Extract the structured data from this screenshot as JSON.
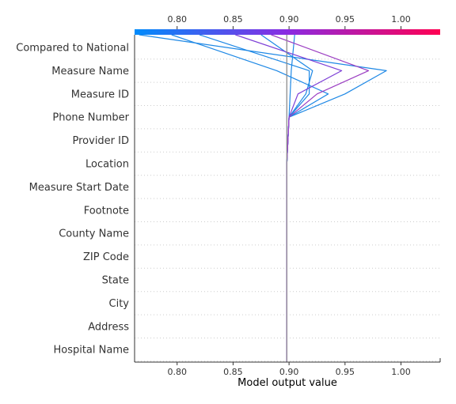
{
  "chart_data": {
    "type": "line",
    "title": "",
    "xlabel": "Model output value",
    "features": [
      "Compared to National",
      "Measure Name",
      "Measure ID",
      "Phone Number",
      "Provider ID",
      "Location",
      "Measure Start Date",
      "Footnote",
      "County Name",
      "ZIP Code",
      "State",
      "City",
      "Address",
      "Hospital Name"
    ],
    "xticks": [
      "0.80",
      "0.85",
      "0.90",
      "0.95",
      "1.00"
    ],
    "xtick_values": [
      0.8,
      0.85,
      0.9,
      0.95,
      1.0
    ],
    "xlim": [
      0.762,
      1.035
    ],
    "base_value": 0.898,
    "grid": "dotted horizontal",
    "colorbar": {
      "position": "top",
      "low_color": "#008bfb",
      "mid_color": "#8a2be2",
      "high_color": "#ff0052"
    },
    "series": [
      {
        "color": "#1e88e5",
        "values": [
          0.898,
          0.898,
          0.898,
          0.898,
          0.898,
          0.898,
          0.898,
          0.898,
          0.898,
          0.898,
          0.899,
          0.9,
          0.901,
          0.902,
          0.905
        ]
      },
      {
        "color": "#1e88e5",
        "values": [
          0.898,
          0.898,
          0.898,
          0.898,
          0.898,
          0.898,
          0.898,
          0.898,
          0.898,
          0.898,
          0.899,
          0.9,
          0.918,
          0.918,
          0.82
        ]
      },
      {
        "color": "#1e88e5",
        "values": [
          0.898,
          0.898,
          0.898,
          0.898,
          0.898,
          0.898,
          0.898,
          0.898,
          0.898,
          0.898,
          0.899,
          0.9,
          0.915,
          0.921,
          0.875
        ]
      },
      {
        "color": "#1e88e5",
        "values": [
          0.898,
          0.898,
          0.898,
          0.898,
          0.898,
          0.898,
          0.898,
          0.898,
          0.898,
          0.898,
          0.899,
          0.9,
          0.95,
          0.987,
          0.766
        ]
      },
      {
        "color": "#1e88e5",
        "values": [
          0.898,
          0.898,
          0.898,
          0.898,
          0.898,
          0.898,
          0.898,
          0.898,
          0.898,
          0.898,
          0.899,
          0.9,
          0.935,
          0.889,
          0.795
        ]
      },
      {
        "color": "#7d3fd6",
        "values": [
          0.898,
          0.898,
          0.898,
          0.898,
          0.898,
          0.898,
          0.898,
          0.898,
          0.898,
          0.898,
          0.899,
          0.9,
          0.908,
          0.947,
          0.852
        ]
      },
      {
        "color": "#9b3ec2",
        "values": [
          0.898,
          0.898,
          0.898,
          0.898,
          0.898,
          0.898,
          0.898,
          0.898,
          0.898,
          0.898,
          0.899,
          0.9,
          0.925,
          0.971,
          0.884
        ]
      },
      {
        "color": "#8f8f8f",
        "values": [
          0.898,
          0.898,
          0.898,
          0.898,
          0.898,
          0.898,
          0.898,
          0.898,
          0.898,
          0.898,
          0.898,
          0.898,
          0.898,
          0.898,
          0.898
        ]
      }
    ]
  }
}
